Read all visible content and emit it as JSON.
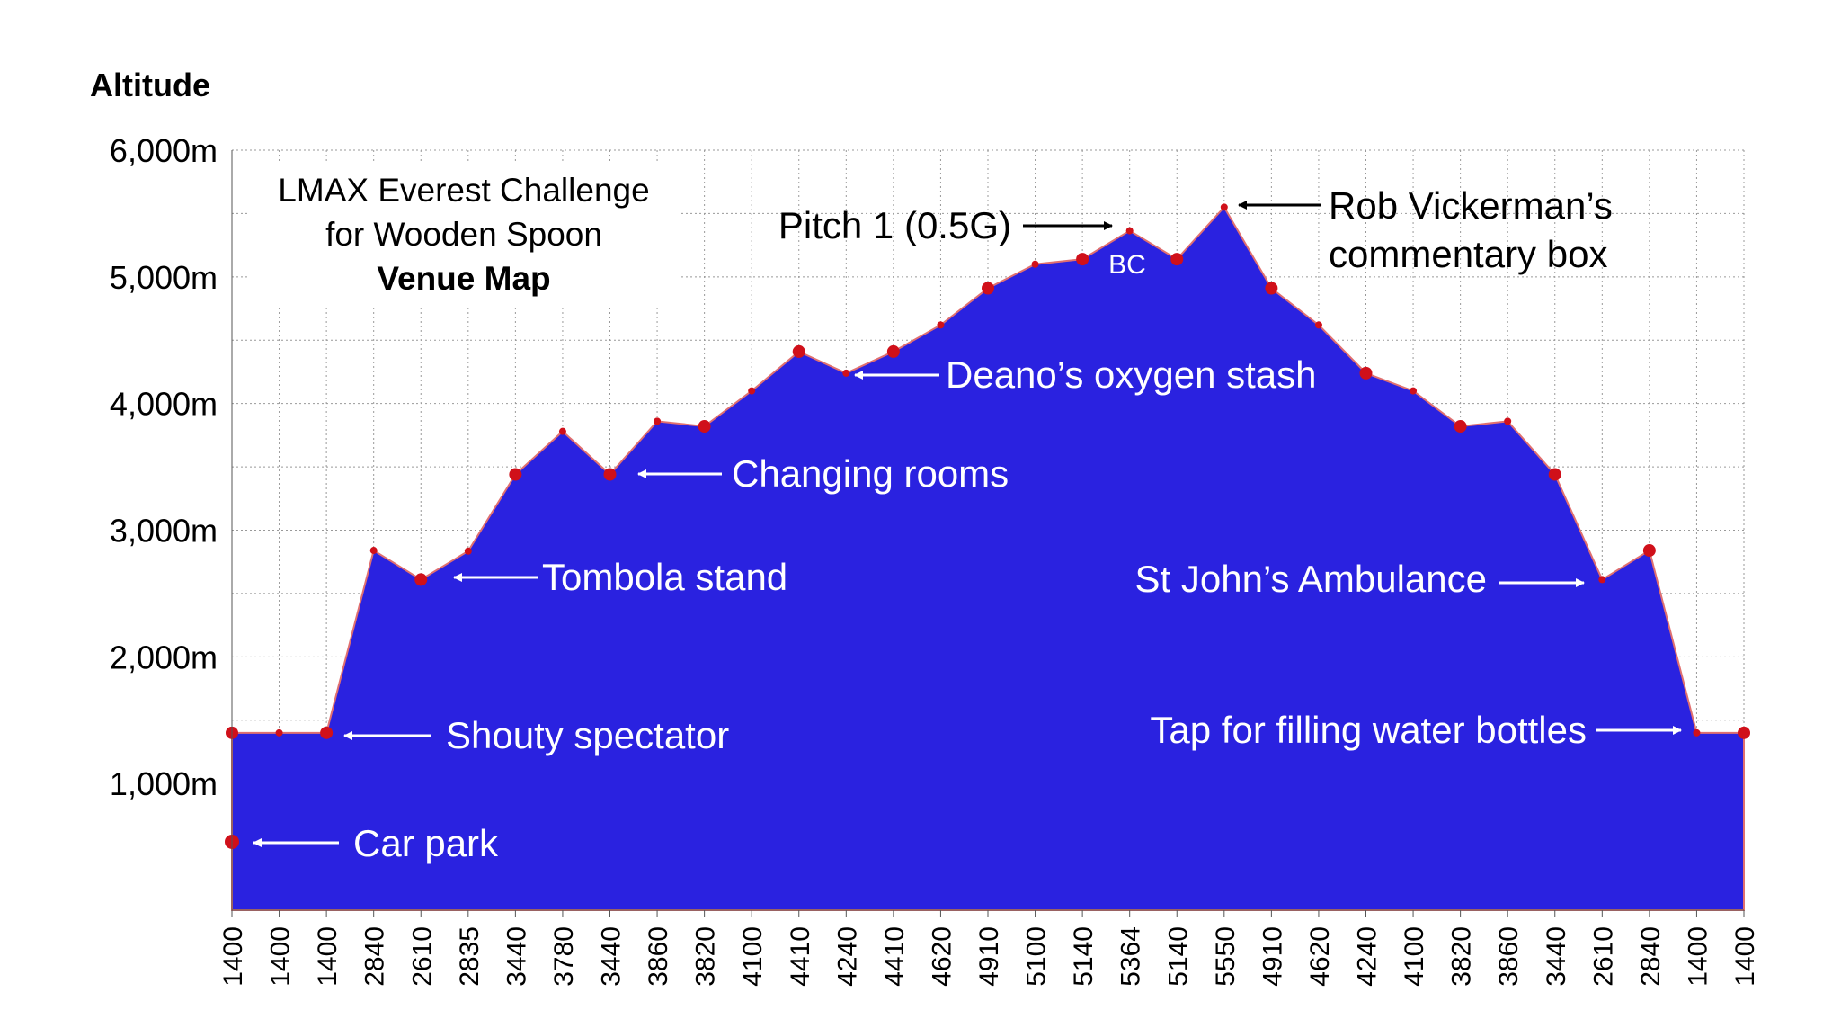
{
  "chart_data": {
    "type": "area",
    "title_lines": [
      "LMAX Everest Challenge",
      "for Wooden Spoon",
      "Venue Map"
    ],
    "ylabel": "Altitude",
    "xlabel": "",
    "ylim": [
      0,
      6000
    ],
    "yticks": [
      1000,
      2000,
      3000,
      4000,
      5000,
      6000
    ],
    "ytick_labels": [
      "1,000m",
      "2,000m",
      "3,000m",
      "4,000m",
      "5,000m",
      "6,000m"
    ],
    "grid": true,
    "x_labels": [
      "1400",
      "1400",
      "1400",
      "2840",
      "2610",
      "2835",
      "3440",
      "3780",
      "3440",
      "3860",
      "3820",
      "4100",
      "4410",
      "4240",
      "4410",
      "4620",
      "4910",
      "5100",
      "5140",
      "5364",
      "5140",
      "5550",
      "4910",
      "4620",
      "4240",
      "4100",
      "3820",
      "3860",
      "3440",
      "2610",
      "2840",
      "1400",
      "1400"
    ],
    "values": [
      1400,
      1400,
      1400,
      2840,
      2610,
      2835,
      3440,
      3780,
      3440,
      3860,
      3820,
      4100,
      4410,
      4240,
      4410,
      4620,
      4910,
      5100,
      5140,
      5364,
      5140,
      5550,
      4910,
      4620,
      4240,
      4100,
      3820,
      3860,
      3440,
      2610,
      2840,
      1400,
      1400
    ],
    "extra_point": {
      "label": "Car park",
      "x_index": 0,
      "value": 540
    },
    "fill_color": "#2a22e0",
    "line_color": "#e07070",
    "marker_color": "#d0101a",
    "annotations": [
      {
        "text": "Car park",
        "point": "extra"
      },
      {
        "text": "Shouty spectator",
        "point": 2
      },
      {
        "text": "Tombola stand",
        "point": 4
      },
      {
        "text": "Changing rooms",
        "point": 8
      },
      {
        "text": "Deano’s oxygen stash",
        "point": 13
      },
      {
        "text": "Pitch 1 (0.5G)",
        "point": 19
      },
      {
        "text": "BC",
        "point": 18
      },
      {
        "text": "Rob Vickerman’s",
        "point": 21
      },
      {
        "text": "commentary box",
        "point": 21
      },
      {
        "text": "St John’s Ambulance",
        "point": 29
      },
      {
        "text": "Tap for filling water bottles",
        "point": 31
      }
    ]
  }
}
